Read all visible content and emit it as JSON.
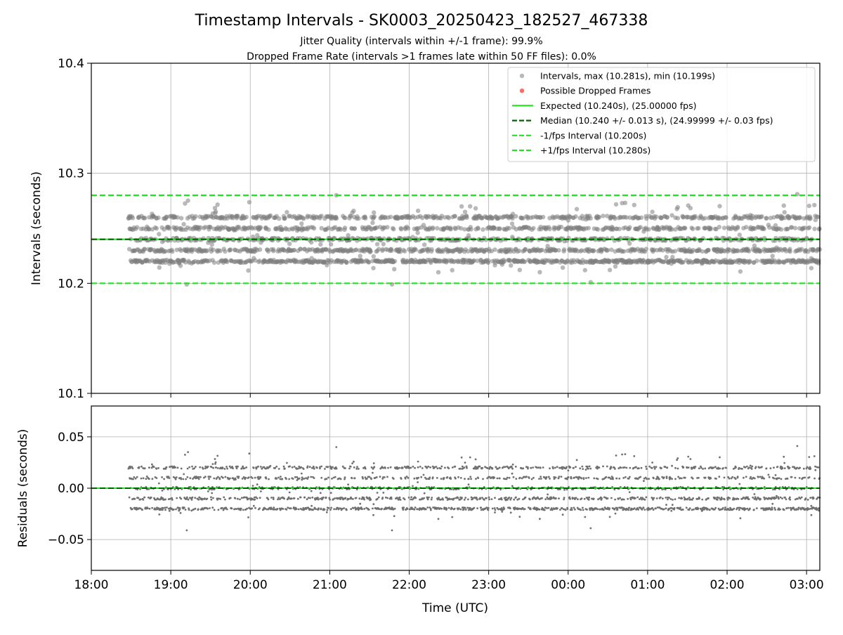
{
  "chart_data": [
    {
      "type": "scatter",
      "title": "Timestamp Intervals - SK0003_20250423_182527_467338",
      "subtitle_lines": [
        "Jitter Quality (intervals within +/-1 frame): 99.9%",
        "Dropped Frame Rate (intervals >1 frames late within 50 FF files): 0.0%"
      ],
      "xlabel": "",
      "ylabel": "Intervals (seconds)",
      "xlim": [
        "18:00",
        "03:10"
      ],
      "ylim": [
        10.1,
        10.4
      ],
      "yticks": [
        10.1,
        10.2,
        10.3,
        10.4
      ],
      "ytick_labels": [
        "10.1",
        "10.2",
        "10.3",
        "10.4"
      ],
      "grid": true,
      "legend_position": "top-right",
      "data_range_x": [
        "18:28",
        "03:10"
      ],
      "intervals_levels": [
        10.22,
        10.23,
        10.24,
        10.25,
        10.26
      ],
      "intervals_max": 10.281,
      "intervals_min": 10.199,
      "reference_lines": [
        {
          "name": "Expected (10.240s), (25.00000 fps)",
          "value": 10.24,
          "style": "solid",
          "color": "#1ee61e"
        },
        {
          "name": "Median (10.240 +/- 0.013 s), (24.99999 +/- 0.03 fps)",
          "value": 10.24,
          "style": "dashed",
          "color": "#006400"
        },
        {
          "name": "-1/fps Interval (10.200s)",
          "value": 10.2,
          "style": "dashed",
          "color": "#1ee61e"
        },
        {
          "name": "+1/fps Interval (10.280s)",
          "value": 10.28,
          "style": "dashed",
          "color": "#1ee61e"
        }
      ],
      "series": [
        {
          "name": "Intervals, max (10.281s), min (10.199s)",
          "color": "#808080"
        },
        {
          "name": "Possible Dropped Frames",
          "color": "#ff5a5a",
          "values": []
        }
      ]
    },
    {
      "type": "scatter",
      "xlabel": "Time (UTC)",
      "ylabel": "Residuals (seconds)",
      "xlim": [
        "18:00",
        "03:10"
      ],
      "ylim": [
        -0.08,
        0.08
      ],
      "yticks": [
        -0.05,
        0.0,
        0.05
      ],
      "ytick_labels": [
        "−0.05",
        "0.00",
        "0.05"
      ],
      "xticks": [
        "18:00",
        "19:00",
        "20:00",
        "21:00",
        "22:00",
        "23:00",
        "00:00",
        "01:00",
        "02:00",
        "03:00"
      ],
      "grid": true,
      "residual_levels": [
        -0.02,
        -0.01,
        0.0,
        0.01,
        0.02
      ],
      "series": [
        {
          "name": "",
          "color": "#707070"
        }
      ],
      "reference_lines": [
        {
          "value": 0.0,
          "style": "solid",
          "color": "#1ee61e"
        },
        {
          "value": 0.0,
          "style": "dashed",
          "color": "#006400"
        }
      ]
    }
  ]
}
